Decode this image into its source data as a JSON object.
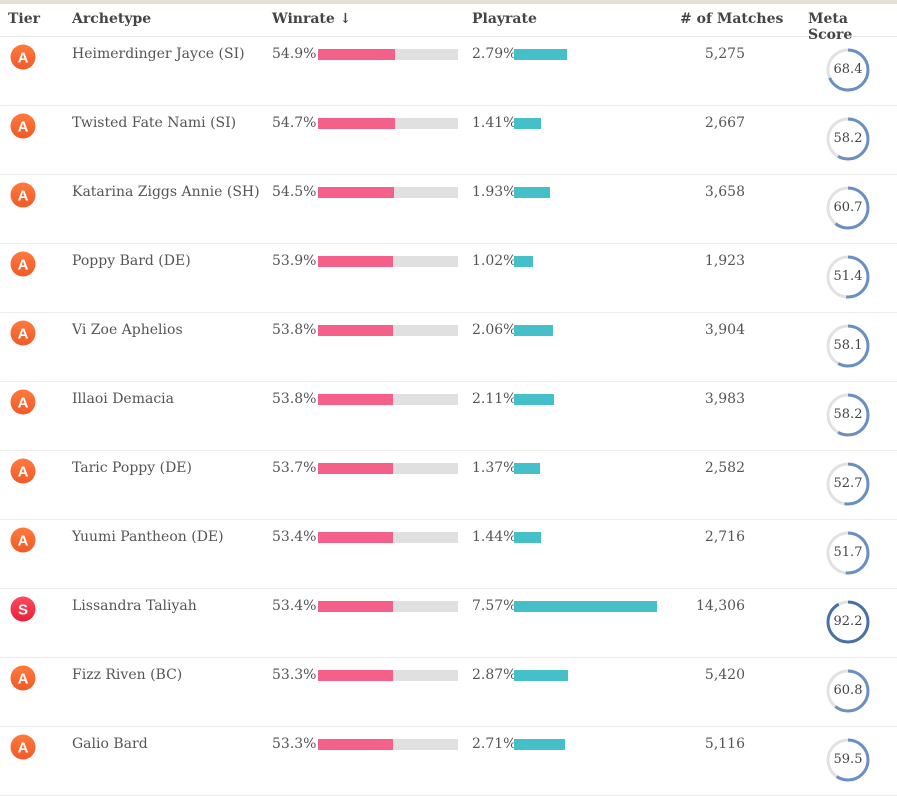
{
  "header": {
    "tier": "Tier",
    "archetype": "Archetype",
    "winrate": "Winrate ↓",
    "playrate": "Playrate",
    "matches": "# of Matches",
    "meta_score": "Meta Score"
  },
  "colors": {
    "winrate_bar": "#f4608a",
    "winrate_track": "#e0e0e0",
    "playrate_bar": "#45c0c9",
    "tier_a": "#f05a28",
    "tier_s": "#e8203a",
    "ring_track": "#e2e2e2",
    "ring_fill": "#6b8fc2"
  },
  "rows": [
    {
      "tier": "A",
      "archetype": "Heimerdinger Jayce (SI)",
      "winrate": "54.9%",
      "winrate_value": 54.9,
      "playrate": "2.79%",
      "playrate_value": 2.79,
      "matches": "5,275",
      "meta_score": "68.4",
      "meta_value": 68.4
    },
    {
      "tier": "A",
      "archetype": "Twisted Fate Nami (SI)",
      "winrate": "54.7%",
      "winrate_value": 54.7,
      "playrate": "1.41%",
      "playrate_value": 1.41,
      "matches": "2,667",
      "meta_score": "58.2",
      "meta_value": 58.2
    },
    {
      "tier": "A",
      "archetype": "Katarina Ziggs Annie (SH)",
      "winrate": "54.5%",
      "winrate_value": 54.5,
      "playrate": "1.93%",
      "playrate_value": 1.93,
      "matches": "3,658",
      "meta_score": "60.7",
      "meta_value": 60.7
    },
    {
      "tier": "A",
      "archetype": "Poppy Bard (DE)",
      "winrate": "53.9%",
      "winrate_value": 53.9,
      "playrate": "1.02%",
      "playrate_value": 1.02,
      "matches": "1,923",
      "meta_score": "51.4",
      "meta_value": 51.4
    },
    {
      "tier": "A",
      "archetype": "Vi Zoe Aphelios",
      "winrate": "53.8%",
      "winrate_value": 53.8,
      "playrate": "2.06%",
      "playrate_value": 2.06,
      "matches": "3,904",
      "meta_score": "58.1",
      "meta_value": 58.1
    },
    {
      "tier": "A",
      "archetype": "Illaoi Demacia",
      "winrate": "53.8%",
      "winrate_value": 53.8,
      "playrate": "2.11%",
      "playrate_value": 2.11,
      "matches": "3,983",
      "meta_score": "58.2",
      "meta_value": 58.2
    },
    {
      "tier": "A",
      "archetype": "Taric Poppy (DE)",
      "winrate": "53.7%",
      "winrate_value": 53.7,
      "playrate": "1.37%",
      "playrate_value": 1.37,
      "matches": "2,582",
      "meta_score": "52.7",
      "meta_value": 52.7
    },
    {
      "tier": "A",
      "archetype": "Yuumi Pantheon (DE)",
      "winrate": "53.4%",
      "winrate_value": 53.4,
      "playrate": "1.44%",
      "playrate_value": 1.44,
      "matches": "2,716",
      "meta_score": "51.7",
      "meta_value": 51.7
    },
    {
      "tier": "S",
      "archetype": "Lissandra Taliyah",
      "winrate": "53.4%",
      "winrate_value": 53.4,
      "playrate": "7.57%",
      "playrate_value": 7.57,
      "matches": "14,306",
      "meta_score": "92.2",
      "meta_value": 92.2
    },
    {
      "tier": "A",
      "archetype": "Fizz Riven (BC)",
      "winrate": "53.3%",
      "winrate_value": 53.3,
      "playrate": "2.87%",
      "playrate_value": 2.87,
      "matches": "5,420",
      "meta_score": "60.8",
      "meta_value": 60.8
    },
    {
      "tier": "A",
      "archetype": "Galio Bard",
      "winrate": "53.3%",
      "winrate_value": 53.3,
      "playrate": "2.71%",
      "playrate_value": 2.71,
      "matches": "5,116",
      "meta_score": "59.5",
      "meta_value": 59.5
    }
  ]
}
